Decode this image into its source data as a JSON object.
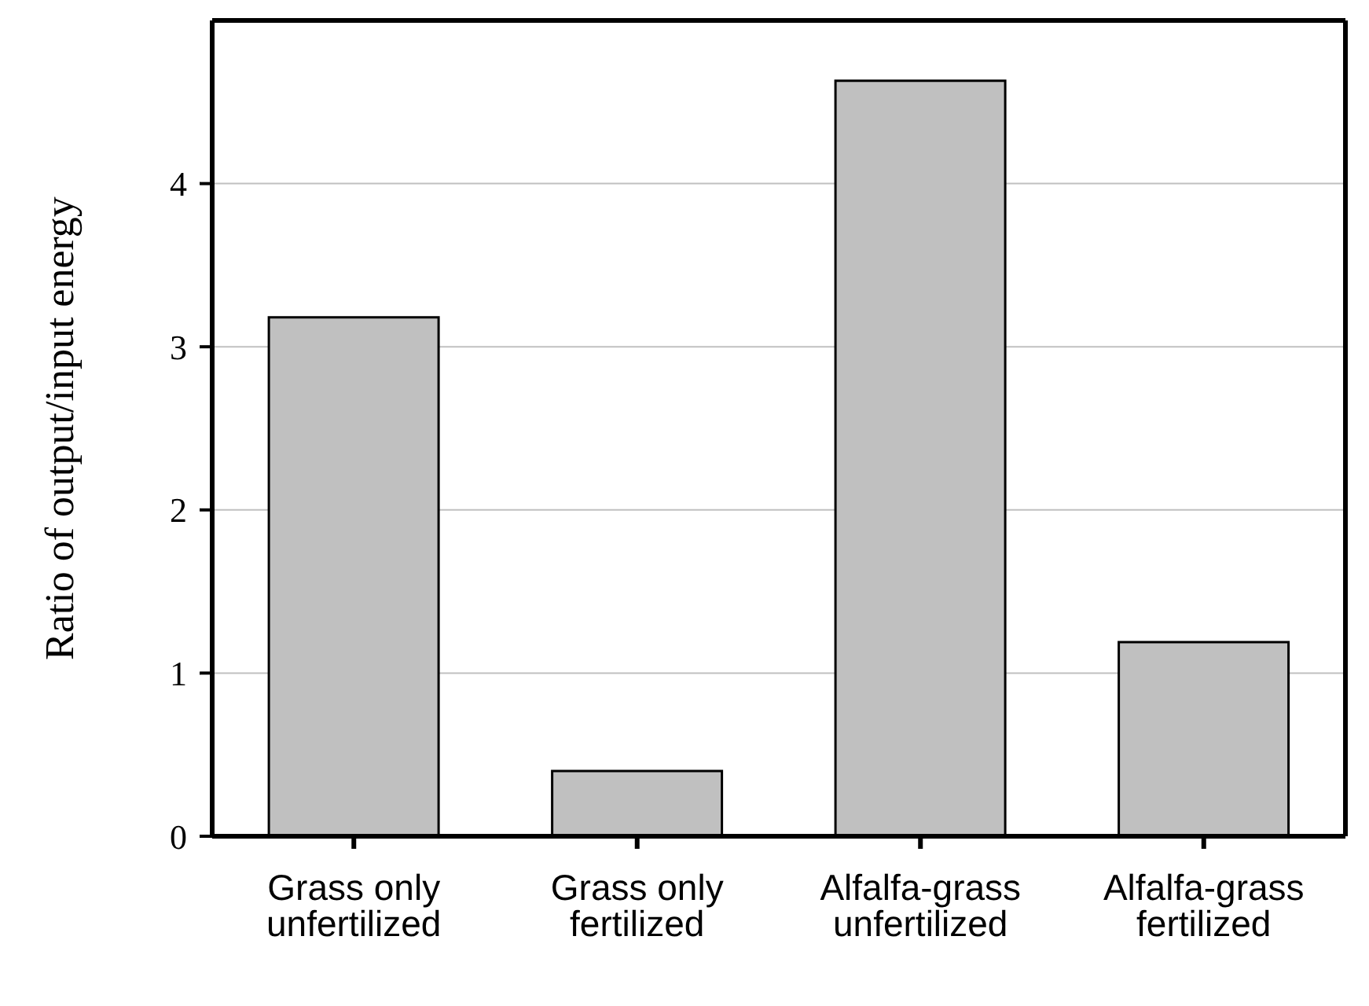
{
  "chart_data": {
    "type": "bar",
    "ylabel": "Ratio of output/input energy",
    "categories": [
      "Grass only unfertilized",
      "Grass only fertilized",
      "Alfalfa-grass unfertilized",
      "Alfalfa-grass fertilized"
    ],
    "values": [
      3.18,
      0.4,
      4.63,
      1.19
    ],
    "color": "#c0c0c0",
    "ylim": [
      0,
      5
    ],
    "yticks": [
      0,
      1,
      2,
      3,
      4
    ],
    "grid": "y",
    "legend": false
  }
}
